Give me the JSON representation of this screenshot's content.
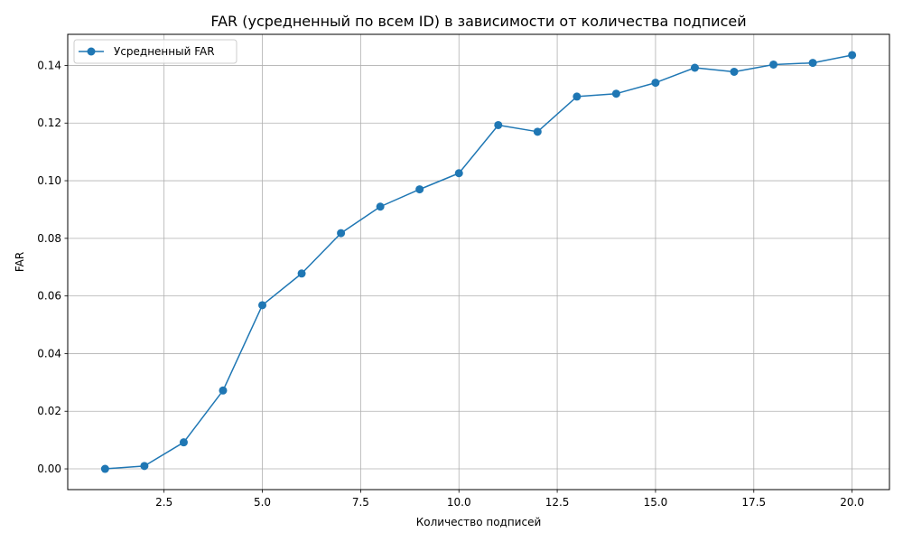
{
  "chart_data": {
    "type": "line",
    "title": "FAR (усредненный по всем ID) в зависимости от количества подписей",
    "xlabel": "Количество подписей",
    "ylabel": "FAR",
    "xlim": [
      0.05,
      20.95
    ],
    "ylim": [
      -0.0072,
      0.1508
    ],
    "xticks": [
      2.5,
      5.0,
      7.5,
      10.0,
      12.5,
      15.0,
      17.5,
      20.0
    ],
    "xtick_labels": [
      "2.5",
      "5.0",
      "7.5",
      "10.0",
      "12.5",
      "15.0",
      "17.5",
      "20.0"
    ],
    "yticks": [
      0.0,
      0.02,
      0.04,
      0.06,
      0.08,
      0.1,
      0.12,
      0.14
    ],
    "ytick_labels": [
      "0.00",
      "0.02",
      "0.04",
      "0.06",
      "0.08",
      "0.10",
      "0.12",
      "0.14"
    ],
    "grid": true,
    "legend_position": "top-left",
    "series": [
      {
        "name": "Усредненный FAR",
        "color": "#1f77b4",
        "marker": "circle",
        "x": [
          1,
          2,
          3,
          4,
          5,
          6,
          7,
          8,
          9,
          10,
          11,
          12,
          13,
          14,
          15,
          16,
          17,
          18,
          19,
          20
        ],
        "y": [
          0.0,
          0.001,
          0.0092,
          0.0272,
          0.0568,
          0.0678,
          0.0818,
          0.091,
          0.097,
          0.1026,
          0.1193,
          0.117,
          0.1292,
          0.1302,
          0.134,
          0.1392,
          0.1378,
          0.1403,
          0.1409,
          0.1436
        ]
      }
    ]
  }
}
